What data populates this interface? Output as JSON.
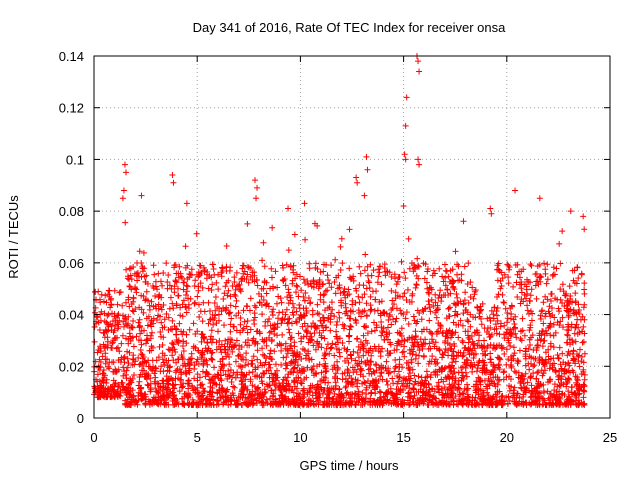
{
  "chart_data": {
    "type": "scatter",
    "title": "Day 341 of 2016, Rate Of TEC Index for receiver onsa",
    "xlabel": "GPS time / hours",
    "ylabel": "ROTI / TECUs",
    "xlim": [
      0,
      25
    ],
    "ylim": [
      0,
      0.14
    ],
    "xticks": [
      0,
      5,
      10,
      15,
      20,
      25
    ],
    "yticks": [
      0,
      0.02,
      0.04,
      0.06,
      0.08,
      0.1,
      0.12,
      0.14
    ],
    "grid": true,
    "marker": "+",
    "color": "#ff0000",
    "series_density": [
      {
        "x_start": 0,
        "x_end": 1.5,
        "y_low": 0.008,
        "y_high": 0.05
      },
      {
        "x_start": 1.5,
        "x_end": 18.5,
        "y_low": 0.005,
        "y_high": 0.06
      },
      {
        "x_start": 18.5,
        "x_end": 19.5,
        "y_low": 0.005,
        "y_high": 0.045
      },
      {
        "x_start": 19.5,
        "x_end": 23.8,
        "y_low": 0.005,
        "y_high": 0.06
      }
    ],
    "notable_points": [
      {
        "x": 1.5,
        "y": 0.098
      },
      {
        "x": 1.55,
        "y": 0.095
      },
      {
        "x": 1.45,
        "y": 0.088
      },
      {
        "x": 1.4,
        "y": 0.085
      },
      {
        "x": 2.3,
        "y": 0.086
      },
      {
        "x": 3.8,
        "y": 0.094
      },
      {
        "x": 3.85,
        "y": 0.091
      },
      {
        "x": 4.5,
        "y": 0.083
      },
      {
        "x": 7.8,
        "y": 0.092
      },
      {
        "x": 7.9,
        "y": 0.089
      },
      {
        "x": 7.85,
        "y": 0.085
      },
      {
        "x": 9.4,
        "y": 0.081
      },
      {
        "x": 10.2,
        "y": 0.083
      },
      {
        "x": 12.7,
        "y": 0.093
      },
      {
        "x": 12.75,
        "y": 0.091
      },
      {
        "x": 13.2,
        "y": 0.101
      },
      {
        "x": 13.25,
        "y": 0.096
      },
      {
        "x": 13.1,
        "y": 0.086
      },
      {
        "x": 15.0,
        "y": 0.082
      },
      {
        "x": 15.15,
        "y": 0.124
      },
      {
        "x": 15.1,
        "y": 0.113
      },
      {
        "x": 15.05,
        "y": 0.102
      },
      {
        "x": 15.1,
        "y": 0.1
      },
      {
        "x": 15.7,
        "y": 0.138
      },
      {
        "x": 15.75,
        "y": 0.134
      },
      {
        "x": 15.65,
        "y": 0.14
      },
      {
        "x": 15.7,
        "y": 0.1
      },
      {
        "x": 15.75,
        "y": 0.098
      },
      {
        "x": 19.2,
        "y": 0.081
      },
      {
        "x": 19.25,
        "y": 0.079
      },
      {
        "x": 20.4,
        "y": 0.088
      },
      {
        "x": 21.6,
        "y": 0.085
      },
      {
        "x": 23.1,
        "y": 0.08
      },
      {
        "x": 23.7,
        "y": 0.078
      },
      {
        "x": 23.75,
        "y": 0.073
      }
    ]
  }
}
